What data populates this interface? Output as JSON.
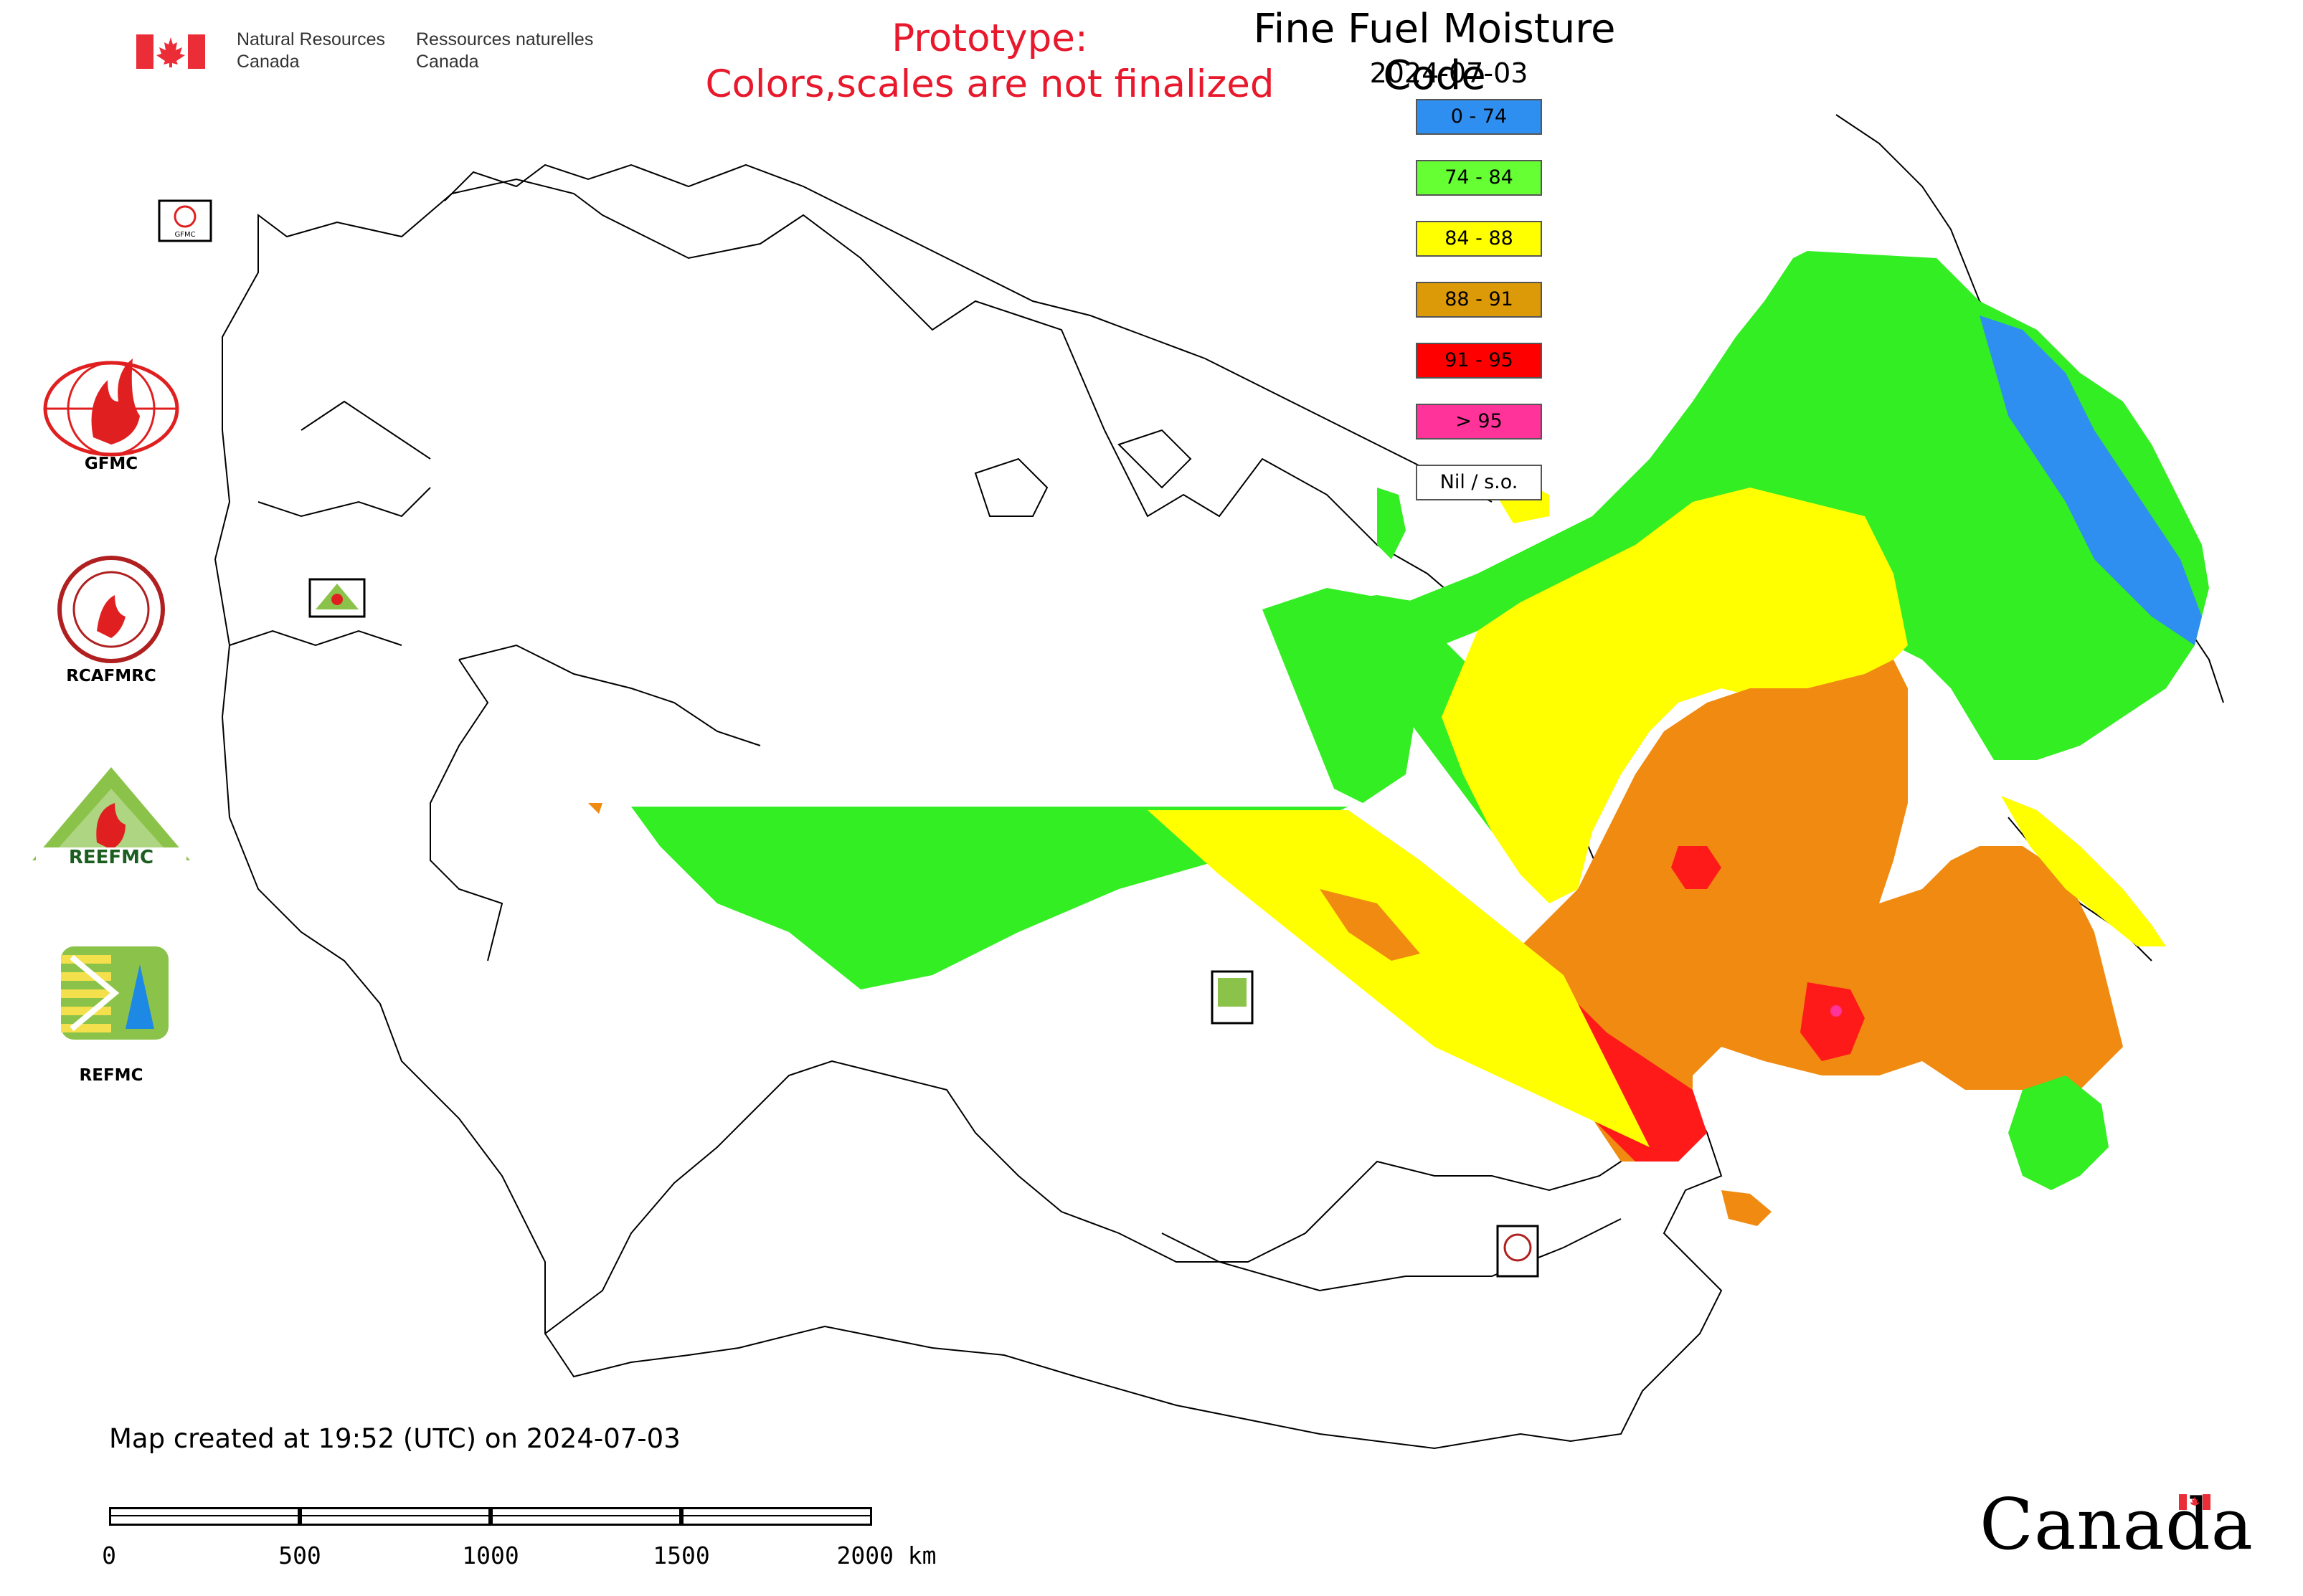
{
  "header": {
    "dept_en_line1": "Natural Resources",
    "dept_en_line2": "Canada",
    "dept_fr_line1": "Ressources naturelles",
    "dept_fr_line2": "Canada",
    "prototype_line1": "Prototype:",
    "prototype_line2": "Colors,scales are not finalized",
    "title": "Fine Fuel Moisture Code",
    "date": "2024-07-03"
  },
  "legend": [
    {
      "label": "0 - 74",
      "color": "#2f8ff0"
    },
    {
      "label": "74 - 84",
      "color": "#66ff33"
    },
    {
      "label": "84 - 88",
      "color": "#ffff00"
    },
    {
      "label": "88 - 91",
      "color": "#dd9a08"
    },
    {
      "label": "91 - 95",
      "color": "#ff0000"
    },
    {
      "label": "> 95",
      "color": "#ff3399"
    },
    {
      "label": "Nil / s.o.",
      "color": "#ffffff"
    }
  ],
  "logos": [
    {
      "name": "GFMC",
      "label": "GFMC"
    },
    {
      "name": "RCAFMRC",
      "label": "RCAFMRC"
    },
    {
      "name": "REEFMC",
      "label": "REEFMC"
    },
    {
      "name": "REFMC",
      "label": "REFMC"
    }
  ],
  "map_markers": {
    "gfmc": "GFMC",
    "reefmc": "REEFMC",
    "refmc": "REFMC",
    "rcafmrc": "RCAFMRC"
  },
  "footer": {
    "created": "Map created at 19:52 (UTC) on 2024-07-03",
    "scale_labels": [
      "0",
      "500",
      "1000",
      "1500",
      "2000 km"
    ],
    "wordmark": "Canada"
  },
  "colors": {
    "prototype_text": "#e8192c",
    "canada_red": "#eb2d37",
    "outline": "#000000"
  }
}
